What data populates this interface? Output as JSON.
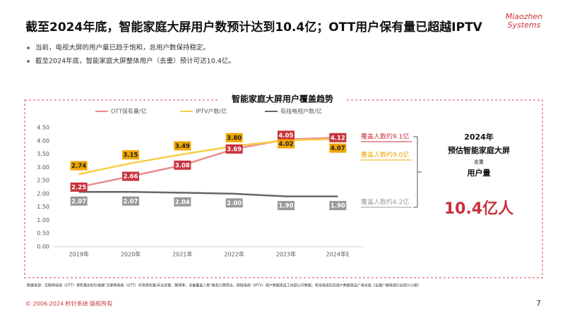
{
  "header": {
    "title": "截至2024年底，智能家庭大屏用户数预计达到10.4亿；OTT用户保有量已超越IPTV",
    "logo": [
      "Miaozhen",
      "Systems"
    ]
  },
  "bullets": [
    "当前，电视大屏的用户量已趋于饱和，总用户数保持稳定。",
    "截至2024年底，智能家庭大屏整体用户（去重）预计可达10.4亿。"
  ],
  "chart_data": {
    "type": "line",
    "title": "智能家庭大屏用户覆盖趋势",
    "categories": [
      "2019年",
      "2020年",
      "2021年",
      "2022年",
      "2023年",
      "2024年E"
    ],
    "series": [
      {
        "name": "OTT保有量/亿",
        "color": "#ec8a8f",
        "label_color": "#c8323c",
        "label_text_color": "#ffffff",
        "values": [
          2.25,
          2.66,
          3.08,
          3.69,
          4.05,
          4.12
        ],
        "value_labels": [
          "2.25",
          "2.66",
          "3.08",
          "3.69",
          "4.05",
          "4.12"
        ]
      },
      {
        "name": "IPTV户数/亿",
        "color": "#f7cc45",
        "label_color": "#f0a500",
        "label_text_color": "#222222",
        "values": [
          2.74,
          3.15,
          3.49,
          3.8,
          4.02,
          4.07
        ],
        "value_labels": [
          "2.74",
          "3.15",
          "3.49",
          "3.80",
          "4.02",
          "4.07"
        ]
      },
      {
        "name": "有线电视户数/亿",
        "color": "#666666",
        "label_color": "#999999",
        "label_text_color": "#ffffff",
        "values": [
          2.07,
          2.07,
          2.04,
          2.0,
          1.9,
          1.9
        ],
        "value_labels": [
          "2.07",
          "2.07",
          "2.04",
          "2.00",
          "1.90",
          "1.90"
        ]
      }
    ],
    "ylim": [
      0,
      4.5
    ],
    "yticks": [
      {
        "value": 0,
        "label": "0.00"
      },
      {
        "value": 0.5,
        "label": "0.50"
      },
      {
        "value": 1,
        "label": "1.00"
      },
      {
        "value": 1.5,
        "label": "1.50"
      },
      {
        "value": 2,
        "label": "2.00"
      },
      {
        "value": 2.5,
        "label": "2.50"
      },
      {
        "value": 3,
        "label": "3.00"
      },
      {
        "value": 3.5,
        "label": "3.50"
      },
      {
        "value": 4,
        "label": "4.00"
      },
      {
        "value": 4.5,
        "label": "4.50"
      }
    ],
    "grid": false,
    "annotations": [
      "覆盖人数约9.1亿",
      "覆盖人数约9.0亿",
      "覆盖人数约4.2亿"
    ]
  },
  "summary": {
    "year": "2024年",
    "line1": "预估智能家庭大屏",
    "dedup": "去重",
    "line2": "用户量",
    "total": "10.4亿人"
  },
  "source": "数据来源：互联网电视（OTT）保有量由秒针根据“互联网电视（OTT）市场保有量/年出货量，联网率，设备覆盖人数”推及计算而出，网络电视（IPTV）用户数据来自工信部公开数据，有线电视实际用户数据来自广电总局《全国广播电视行业统计公报》",
  "footer": {
    "copyright": "© 2006-2024 秒针系统 版权所有",
    "page": "7"
  }
}
